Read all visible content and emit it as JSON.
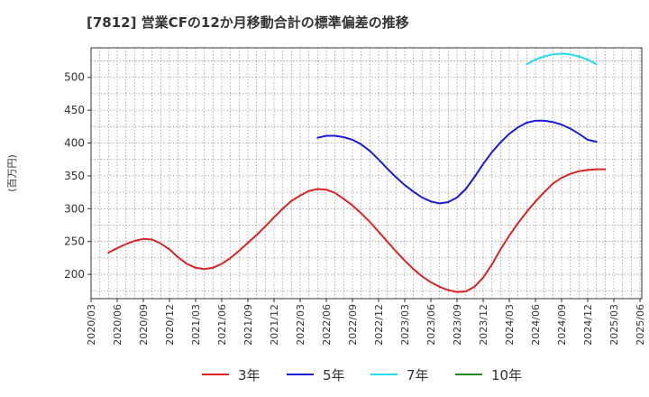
{
  "chart_data": {
    "type": "line",
    "title": "[7812]  営業CFの12か月移動合計の標準偏差の推移",
    "ylabel": "(百万円)",
    "xlabel": "",
    "ylim": [
      163,
      545
    ],
    "yticks": [
      200,
      250,
      300,
      350,
      400,
      450,
      500
    ],
    "xticks": [
      "2020/03",
      "2020/06",
      "2020/09",
      "2020/12",
      "2021/03",
      "2021/06",
      "2021/09",
      "2021/12",
      "2022/03",
      "2022/06",
      "2022/09",
      "2022/12",
      "2023/03",
      "2023/06",
      "2023/09",
      "2023/12",
      "2024/03",
      "2024/06",
      "2024/09",
      "2024/12",
      "2025/03",
      "2025/06"
    ],
    "grid": true,
    "legend_position": "bottom",
    "series": [
      {
        "name": "3年",
        "color": "#dd2222",
        "points": [
          [
            "2020/05",
            233
          ],
          [
            "2020/06",
            240
          ],
          [
            "2020/07",
            246
          ],
          [
            "2020/08",
            251
          ],
          [
            "2020/09",
            254
          ],
          [
            "2020/10",
            253
          ],
          [
            "2020/11",
            247
          ],
          [
            "2020/12",
            238
          ],
          [
            "2021/01",
            226
          ],
          [
            "2021/02",
            216
          ],
          [
            "2021/03",
            210
          ],
          [
            "2021/04",
            208
          ],
          [
            "2021/05",
            210
          ],
          [
            "2021/06",
            216
          ],
          [
            "2021/07",
            225
          ],
          [
            "2021/08",
            236
          ],
          [
            "2021/09",
            248
          ],
          [
            "2021/10",
            260
          ],
          [
            "2021/11",
            273
          ],
          [
            "2021/12",
            287
          ],
          [
            "2022/01",
            300
          ],
          [
            "2022/02",
            312
          ],
          [
            "2022/03",
            320
          ],
          [
            "2022/04",
            327
          ],
          [
            "2022/05",
            330
          ],
          [
            "2022/06",
            329
          ],
          [
            "2022/07",
            324
          ],
          [
            "2022/08",
            315
          ],
          [
            "2022/09",
            305
          ],
          [
            "2022/10",
            293
          ],
          [
            "2022/11",
            280
          ],
          [
            "2022/12",
            265
          ],
          [
            "2023/01",
            250
          ],
          [
            "2023/02",
            235
          ],
          [
            "2023/03",
            221
          ],
          [
            "2023/04",
            208
          ],
          [
            "2023/05",
            197
          ],
          [
            "2023/06",
            188
          ],
          [
            "2023/07",
            181
          ],
          [
            "2023/08",
            176
          ],
          [
            "2023/09",
            173
          ],
          [
            "2023/10",
            174
          ],
          [
            "2023/11",
            181
          ],
          [
            "2023/12",
            195
          ],
          [
            "2024/01",
            215
          ],
          [
            "2024/02",
            238
          ],
          [
            "2024/03",
            259
          ],
          [
            "2024/04",
            278
          ],
          [
            "2024/05",
            295
          ],
          [
            "2024/06",
            311
          ],
          [
            "2024/07",
            325
          ],
          [
            "2024/08",
            338
          ],
          [
            "2024/09",
            347
          ],
          [
            "2024/10",
            353
          ],
          [
            "2024/11",
            357
          ],
          [
            "2024/12",
            359
          ],
          [
            "2025/01",
            360
          ],
          [
            "2025/02",
            360
          ]
        ]
      },
      {
        "name": "5年",
        "color": "#1a1adb",
        "points": [
          [
            "2022/05",
            408
          ],
          [
            "2022/06",
            411
          ],
          [
            "2022/07",
            411
          ],
          [
            "2022/08",
            409
          ],
          [
            "2022/09",
            405
          ],
          [
            "2022/10",
            398
          ],
          [
            "2022/11",
            388
          ],
          [
            "2022/12",
            375
          ],
          [
            "2023/01",
            361
          ],
          [
            "2023/02",
            348
          ],
          [
            "2023/03",
            336
          ],
          [
            "2023/04",
            326
          ],
          [
            "2023/05",
            317
          ],
          [
            "2023/06",
            311
          ],
          [
            "2023/07",
            308
          ],
          [
            "2023/08",
            310
          ],
          [
            "2023/09",
            317
          ],
          [
            "2023/10",
            330
          ],
          [
            "2023/11",
            348
          ],
          [
            "2023/12",
            368
          ],
          [
            "2024/01",
            386
          ],
          [
            "2024/02",
            401
          ],
          [
            "2024/03",
            414
          ],
          [
            "2024/04",
            424
          ],
          [
            "2024/05",
            431
          ],
          [
            "2024/06",
            434
          ],
          [
            "2024/07",
            434
          ],
          [
            "2024/08",
            432
          ],
          [
            "2024/09",
            428
          ],
          [
            "2024/10",
            422
          ],
          [
            "2024/11",
            414
          ],
          [
            "2024/12",
            405
          ],
          [
            "2025/01",
            402
          ]
        ]
      },
      {
        "name": "7年",
        "color": "#22ddee",
        "points": [
          [
            "2024/05",
            520
          ],
          [
            "2024/06",
            527
          ],
          [
            "2024/07",
            532
          ],
          [
            "2024/08",
            535
          ],
          [
            "2024/09",
            536
          ],
          [
            "2024/10",
            535
          ],
          [
            "2024/11",
            532
          ],
          [
            "2024/12",
            527
          ],
          [
            "2025/01",
            520
          ]
        ]
      },
      {
        "name": "10年",
        "color": "#228822",
        "points": []
      }
    ]
  }
}
